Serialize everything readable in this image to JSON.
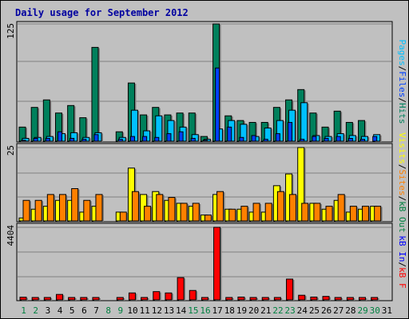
{
  "title": "Daily usage for September 2012",
  "colors": {
    "hits": "#00805c",
    "files": "#00c0ff",
    "pages": "#0040ff",
    "visits": "#ffff00",
    "sites": "#ff8000",
    "kb_in": "#0000ff",
    "kb_out": "#008040",
    "kb_f": "#ff0000",
    "weekend_label": "#008040",
    "weekday_label": "#000000"
  },
  "panel_labels": {
    "top": [
      {
        "text": "Pages",
        "color": "#00c0ff"
      },
      {
        "text": "/",
        "color": "#000000"
      },
      {
        "text": "Files",
        "color": "#0040ff"
      },
      {
        "text": "/",
        "color": "#000000"
      },
      {
        "text": "Hits",
        "color": "#00805c"
      }
    ],
    "middle": [
      {
        "text": "Visits",
        "color": "#ffff00"
      },
      {
        "text": "/",
        "color": "#000000"
      },
      {
        "text": "Sites",
        "color": "#ff8000"
      },
      {
        "text": "/",
        "color": "#000000"
      },
      {
        "text": "kB Out",
        "color": "#008040"
      }
    ],
    "bottom": [
      {
        "text": "kB In",
        "color": "#0000ff"
      },
      {
        "text": "/",
        "color": "#000000"
      },
      {
        "text": "kB F",
        "color": "#ff0000"
      }
    ]
  },
  "chart_data": [
    {
      "type": "bar",
      "panel": "top",
      "ymax_label": "125",
      "ylim": [
        0,
        125
      ],
      "grid": true,
      "categories": [
        "1",
        "2",
        "3",
        "4",
        "5",
        "6",
        "7",
        "8",
        "9",
        "10",
        "11",
        "12",
        "13",
        "14",
        "15",
        "16",
        "17",
        "18",
        "19",
        "20",
        "21",
        "22",
        "23",
        "24",
        "25",
        "26",
        "27",
        "28",
        "29",
        "30",
        "31"
      ],
      "weekend_days": [
        1,
        2,
        8,
        9,
        15,
        16,
        22,
        23,
        29,
        30
      ],
      "series": [
        {
          "name": "Hits",
          "color": "#00805c",
          "values": [
            15,
            36,
            44,
            30,
            38,
            25,
            100,
            0,
            10,
            62,
            28,
            36,
            28,
            30,
            30,
            5,
            125,
            27,
            22,
            20,
            20,
            36,
            44,
            55,
            30,
            15,
            32,
            20,
            22,
            0,
            0
          ]
        },
        {
          "name": "Files",
          "color": "#00c0ff",
          "values": [
            3,
            4,
            5,
            8,
            9,
            4,
            9,
            0,
            4,
            33,
            11,
            27,
            22,
            15,
            7,
            2,
            13,
            22,
            18,
            5,
            14,
            22,
            33,
            41,
            6,
            5,
            8,
            6,
            5,
            7,
            0
          ]
        },
        {
          "name": "Pages",
          "color": "#0040ff",
          "values": [
            1,
            3,
            3,
            10,
            3,
            2,
            7,
            0,
            2,
            5,
            5,
            4,
            8,
            10,
            3,
            1,
            78,
            15,
            4,
            6,
            2,
            8,
            20,
            2,
            5,
            3,
            5,
            3,
            2,
            5,
            0
          ]
        }
      ]
    },
    {
      "type": "bar",
      "panel": "middle",
      "ymax_label": "25",
      "ylim": [
        0,
        25
      ],
      "grid": true,
      "categories": [
        "1",
        "2",
        "3",
        "4",
        "5",
        "6",
        "7",
        "8",
        "9",
        "10",
        "11",
        "12",
        "13",
        "14",
        "15",
        "16",
        "17",
        "18",
        "19",
        "20",
        "21",
        "22",
        "23",
        "24",
        "25",
        "26",
        "27",
        "28",
        "29",
        "30",
        "31"
      ],
      "series": [
        {
          "name": "Visits",
          "color": "#ffff00",
          "values": [
            1,
            4,
            5,
            7,
            7,
            3,
            5,
            0,
            3,
            18,
            9,
            10,
            7,
            6,
            5,
            2,
            9,
            4,
            4,
            3,
            3,
            12,
            16,
            25,
            6,
            4,
            7,
            3,
            4,
            5,
            0
          ]
        },
        {
          "name": "Sites",
          "color": "#ff8000",
          "values": [
            7,
            7,
            9,
            9,
            11,
            7,
            9,
            0,
            3,
            10,
            5,
            9,
            8,
            6,
            6,
            2,
            10,
            4,
            5,
            6,
            6,
            10,
            9,
            6,
            6,
            5,
            9,
            5,
            5,
            5,
            0
          ]
        }
      ]
    },
    {
      "type": "bar",
      "panel": "bottom",
      "ymax_label": "4404",
      "ylim": [
        0,
        4404
      ],
      "grid": true,
      "categories": [
        "1",
        "2",
        "3",
        "4",
        "5",
        "6",
        "7",
        "8",
        "9",
        "10",
        "11",
        "12",
        "13",
        "14",
        "15",
        "16",
        "17",
        "18",
        "19",
        "20",
        "21",
        "22",
        "23",
        "24",
        "25",
        "26",
        "27",
        "28",
        "29",
        "30",
        "31"
      ],
      "series": [
        {
          "name": "kB F",
          "color": "#ff0000",
          "values": [
            160,
            70,
            70,
            330,
            130,
            70,
            110,
            0,
            50,
            420,
            50,
            500,
            420,
            1350,
            570,
            50,
            4404,
            70,
            170,
            60,
            60,
            60,
            1260,
            280,
            170,
            210,
            60,
            60,
            60,
            60,
            0
          ]
        }
      ]
    }
  ]
}
